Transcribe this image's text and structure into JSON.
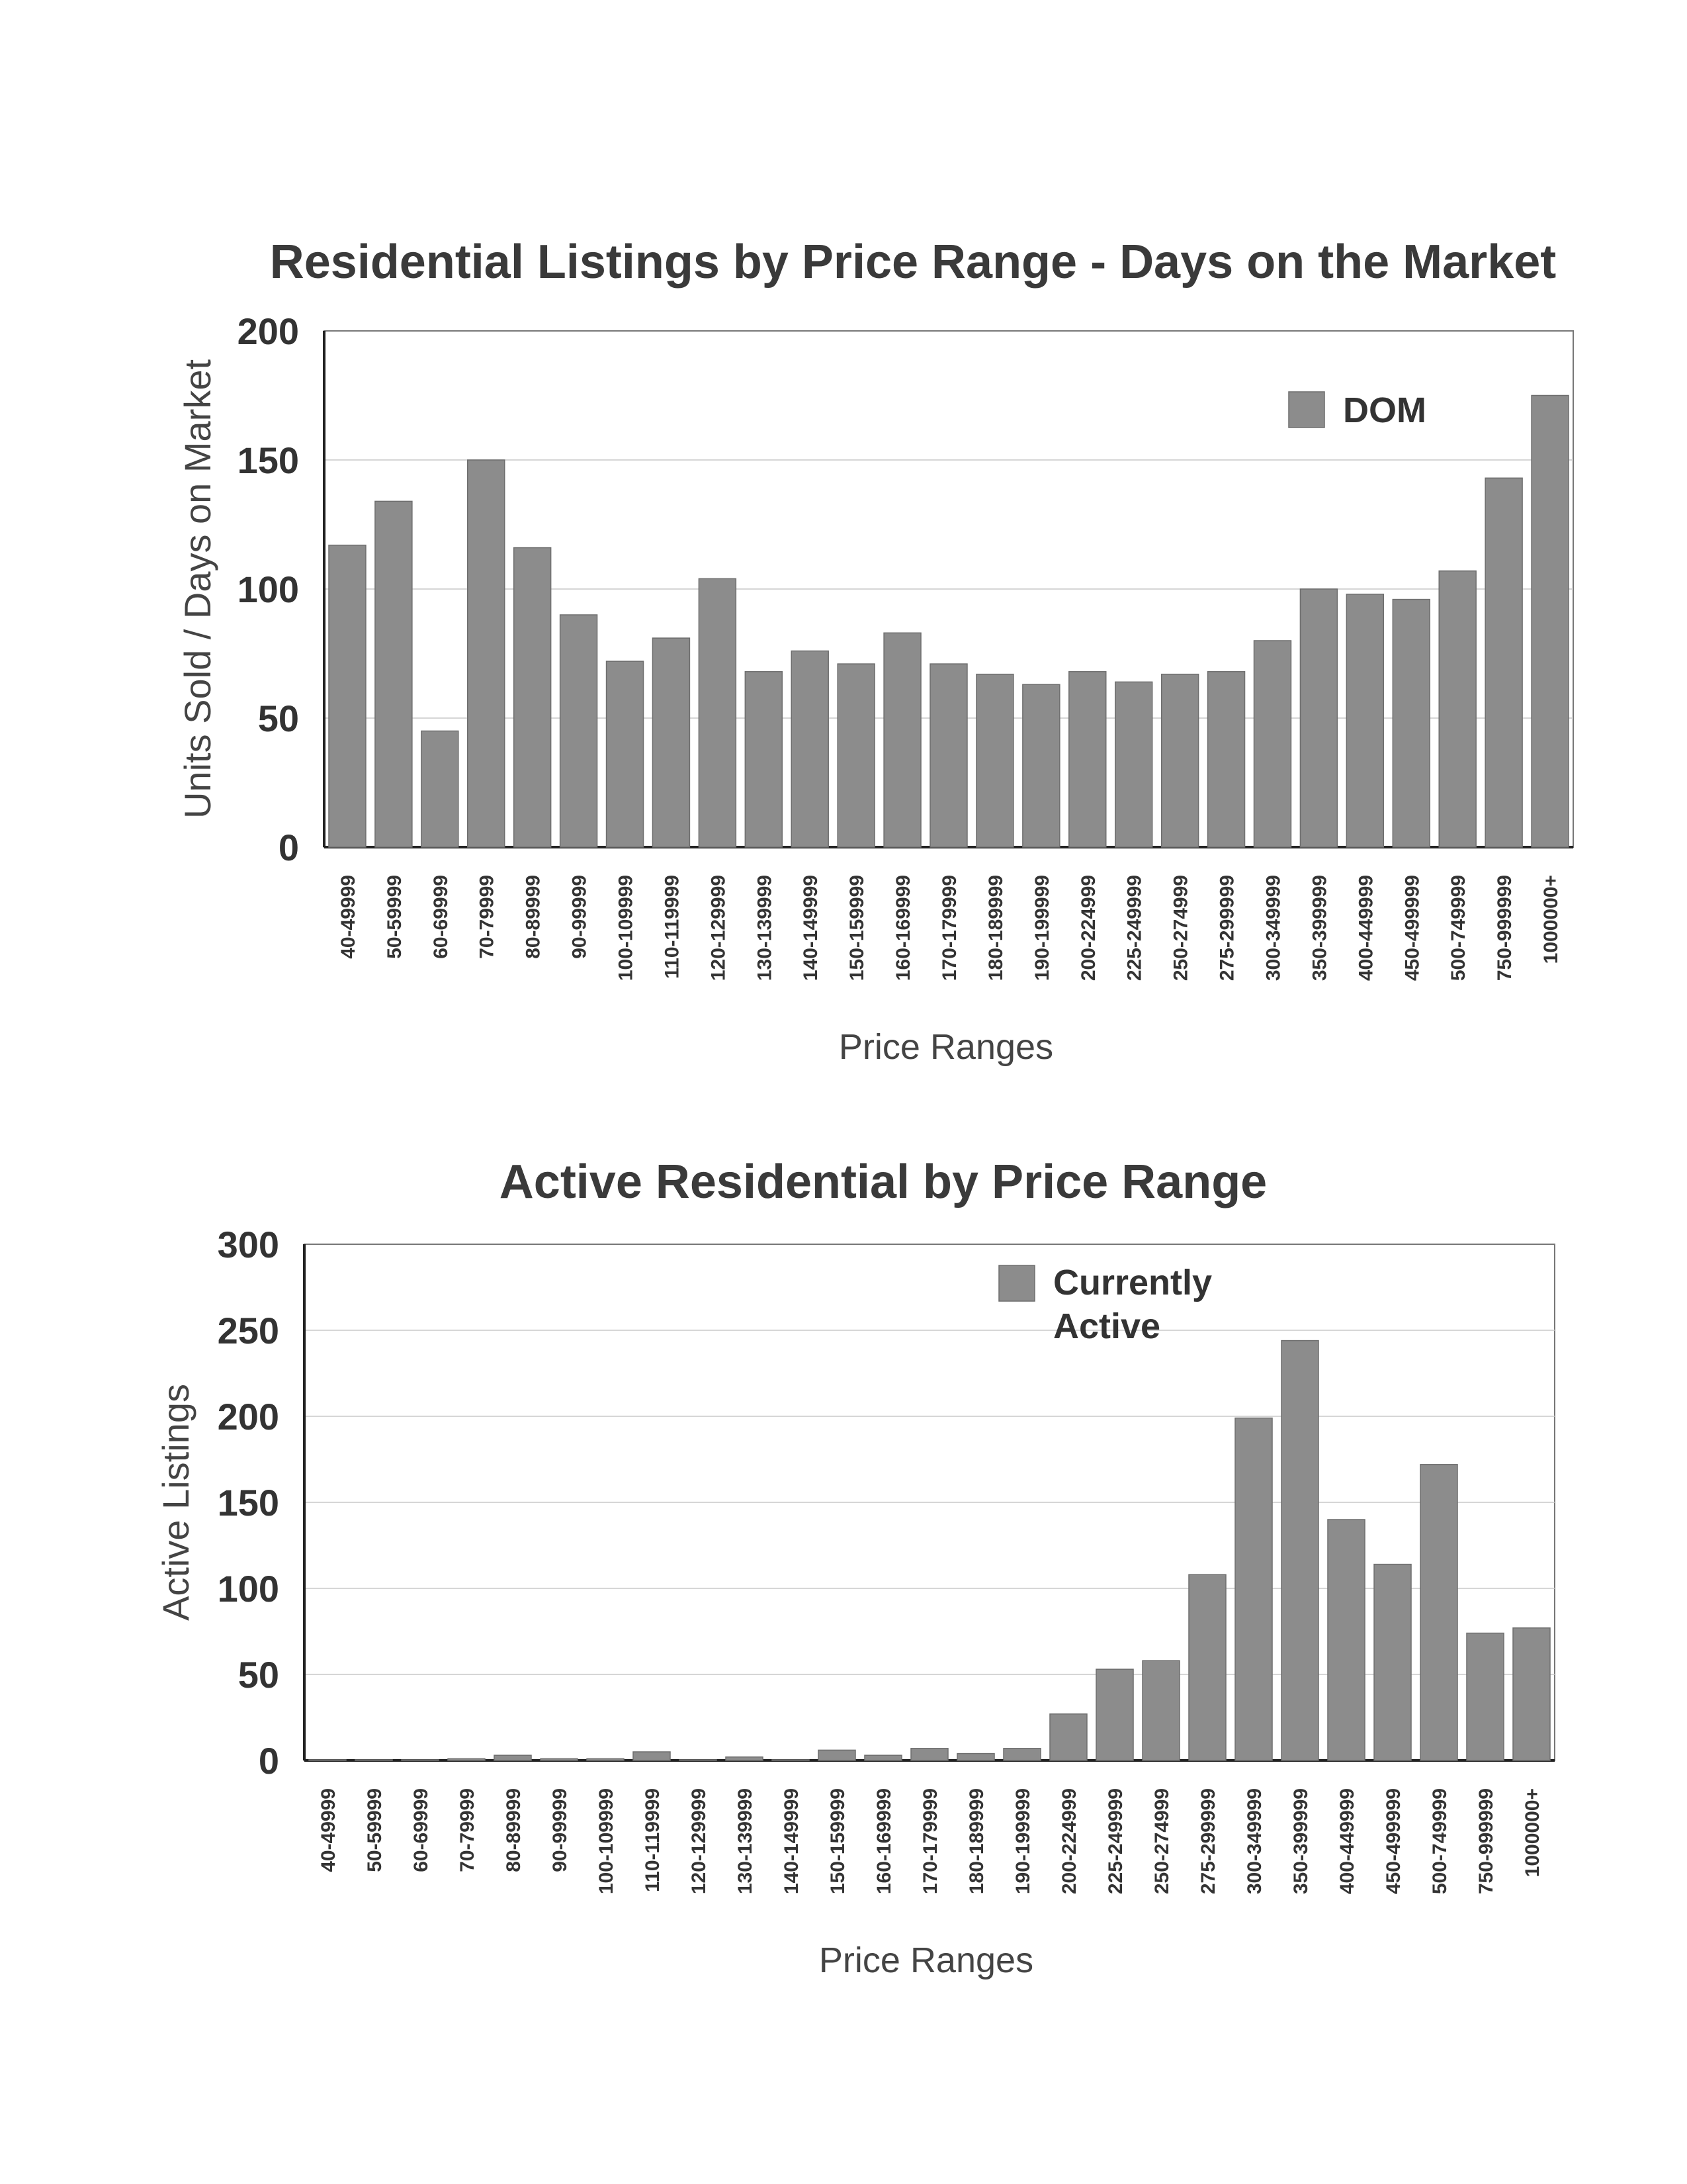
{
  "chart_data": [
    {
      "type": "bar",
      "title": "Residential Listings by Price Range - Days on the Market",
      "xlabel": "Price Ranges",
      "ylabel": "Units Sold / Days on Market",
      "ylim": [
        0,
        200
      ],
      "yticks": [
        "0",
        "50",
        "100",
        "150",
        "200"
      ],
      "grid": true,
      "legend_position": "top-right",
      "bar_color": "#8c8c8c",
      "categories": [
        "40-49999",
        "50-59999",
        "60-69999",
        "70-79999",
        "80-89999",
        "90-99999",
        "100-109999",
        "110-119999",
        "120-129999",
        "130-139999",
        "140-149999",
        "150-159999",
        "160-169999",
        "170-179999",
        "180-189999",
        "190-199999",
        "200-224999",
        "225-249999",
        "250-274999",
        "275-299999",
        "300-349999",
        "350-399999",
        "400-449999",
        "450-499999",
        "500-749999",
        "750-999999",
        "1000000+"
      ],
      "series": [
        {
          "name": "DOM",
          "values": [
            117,
            134,
            45,
            150,
            116,
            90,
            72,
            81,
            104,
            68,
            76,
            71,
            83,
            71,
            67,
            63,
            68,
            64,
            67,
            68,
            80,
            100,
            98,
            96,
            107,
            143,
            175
          ]
        }
      ]
    },
    {
      "type": "bar",
      "title": "Active Residential by Price Range",
      "xlabel": "Price Ranges",
      "ylabel": "Active Listings",
      "ylim": [
        0,
        300
      ],
      "yticks": [
        "0",
        "50",
        "100",
        "150",
        "200",
        "250",
        "300"
      ],
      "grid": true,
      "legend_position": "top-right",
      "bar_color": "#8c8c8c",
      "categories": [
        "40-49999",
        "50-59999",
        "60-69999",
        "70-79999",
        "80-89999",
        "90-99999",
        "100-109999",
        "110-119999",
        "120-129999",
        "130-139999",
        "140-149999",
        "150-159999",
        "160-169999",
        "170-179999",
        "180-189999",
        "190-199999",
        "200-224999",
        "225-249999",
        "250-274999",
        "275-299999",
        "300-349999",
        "350-399999",
        "400-449999",
        "450-499999",
        "500-749999",
        "750-999999",
        "1000000+"
      ],
      "series": [
        {
          "name": "Currently Active",
          "values": [
            0,
            0,
            0,
            1,
            3,
            1,
            1,
            5,
            0,
            2,
            0,
            6,
            3,
            7,
            4,
            7,
            27,
            53,
            58,
            108,
            199,
            244,
            140,
            114,
            172,
            74,
            77
          ]
        }
      ]
    }
  ]
}
